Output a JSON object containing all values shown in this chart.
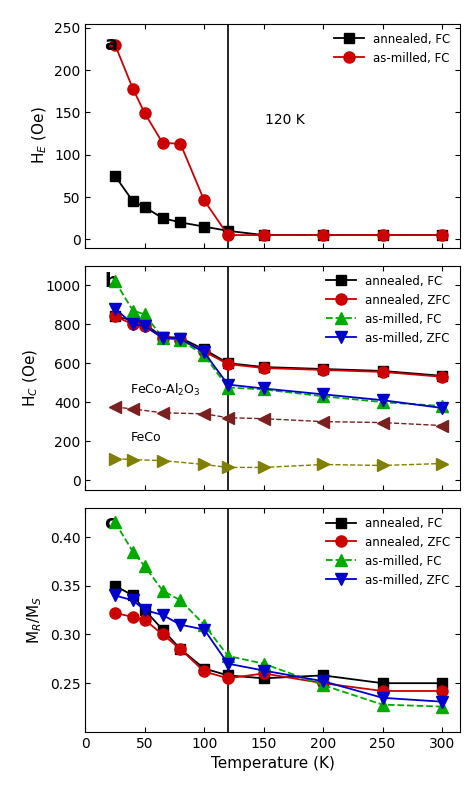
{
  "panel_a": {
    "annealed_FC": {
      "T": [
        25,
        40,
        50,
        65,
        80,
        100,
        120,
        150,
        200,
        250,
        300
      ],
      "H": [
        75,
        45,
        38,
        25,
        20,
        15,
        10,
        5,
        5,
        5,
        5
      ]
    },
    "asmilled_FC": {
      "T": [
        25,
        40,
        50,
        65,
        80,
        100,
        120,
        150,
        200,
        250,
        300
      ],
      "H": [
        230,
        178,
        149,
        114,
        113,
        46,
        5,
        5,
        5,
        5,
        5
      ]
    },
    "ylabel": "H$_E$ (Oe)",
    "ylim": [
      -10,
      255
    ],
    "yticks": [
      0,
      50,
      100,
      150,
      200,
      250
    ],
    "label": "a"
  },
  "panel_b": {
    "annealed_FC": {
      "T": [
        25,
        40,
        50,
        65,
        80,
        100,
        120,
        150,
        200,
        250,
        300
      ],
      "H": [
        840,
        820,
        800,
        735,
        730,
        670,
        600,
        580,
        570,
        560,
        535
      ]
    },
    "annealed_ZFC": {
      "T": [
        25,
        40,
        50,
        65,
        80,
        100,
        120,
        150,
        200,
        250,
        300
      ],
      "H": [
        840,
        800,
        790,
        730,
        720,
        660,
        595,
        575,
        565,
        555,
        530
      ]
    },
    "asmilled_FC": {
      "T": [
        25,
        40,
        50,
        65,
        80,
        100,
        120,
        150,
        200,
        250,
        300
      ],
      "H": [
        1020,
        870,
        850,
        730,
        720,
        640,
        475,
        465,
        430,
        400,
        380
      ]
    },
    "asmilled_ZFC": {
      "T": [
        25,
        40,
        50,
        65,
        80,
        100,
        120,
        150,
        200,
        250,
        300
      ],
      "H": [
        880,
        800,
        790,
        730,
        725,
        655,
        490,
        470,
        440,
        410,
        370
      ]
    },
    "FeCo_Al2O3": {
      "T": [
        25,
        40,
        65,
        100,
        120,
        150,
        200,
        250,
        300
      ],
      "H": [
        375,
        365,
        345,
        340,
        320,
        315,
        300,
        295,
        280
      ]
    },
    "FeCo": {
      "T": [
        25,
        40,
        65,
        100,
        120,
        150,
        200,
        250,
        300
      ],
      "H": [
        110,
        105,
        100,
        80,
        65,
        65,
        80,
        75,
        85
      ]
    },
    "ylabel": "H$_C$ (Oe)",
    "ylim": [
      -50,
      1100
    ],
    "yticks": [
      0,
      200,
      400,
      600,
      800,
      1000
    ],
    "label": "b"
  },
  "panel_c": {
    "annealed_FC": {
      "T": [
        25,
        40,
        50,
        65,
        80,
        100,
        120,
        150,
        200,
        250,
        300
      ],
      "M": [
        0.35,
        0.34,
        0.325,
        0.305,
        0.285,
        0.265,
        0.258,
        0.255,
        0.258,
        0.25,
        0.25
      ]
    },
    "annealed_ZFC": {
      "T": [
        25,
        40,
        50,
        65,
        80,
        100,
        120,
        150,
        200,
        250,
        300
      ],
      "M": [
        0.322,
        0.318,
        0.315,
        0.3,
        0.285,
        0.262,
        0.255,
        0.26,
        0.25,
        0.242,
        0.242
      ]
    },
    "asmilled_FC": {
      "T": [
        25,
        40,
        50,
        65,
        80,
        100,
        120,
        150,
        200,
        250,
        300
      ],
      "M": [
        0.415,
        0.385,
        0.37,
        0.345,
        0.335,
        0.31,
        0.278,
        0.27,
        0.248,
        0.228,
        0.226
      ]
    },
    "asmilled_ZFC": {
      "T": [
        25,
        40,
        50,
        65,
        80,
        100,
        120,
        150,
        200,
        250,
        300
      ],
      "M": [
        0.34,
        0.335,
        0.325,
        0.32,
        0.31,
        0.305,
        0.27,
        0.263,
        0.252,
        0.235,
        0.231
      ]
    },
    "ylabel": "M$_R$/M$_S$",
    "ylim": [
      0.2,
      0.43
    ],
    "yticks": [
      0.25,
      0.3,
      0.35,
      0.4
    ],
    "label": "c"
  },
  "vline_x": 120,
  "xlim": [
    10,
    315
  ],
  "xticks": [
    0,
    50,
    100,
    150,
    200,
    250,
    300
  ],
  "xlabel": "Temperature (K)",
  "colors": {
    "annealed_FC": "#000000",
    "annealed_ZFC": "#cc0000",
    "asmilled_FC": "#00aa00",
    "asmilled_ZFC": "#0000cc",
    "FeCo_Al2O3": "#7b2020",
    "FeCo": "#808000"
  }
}
